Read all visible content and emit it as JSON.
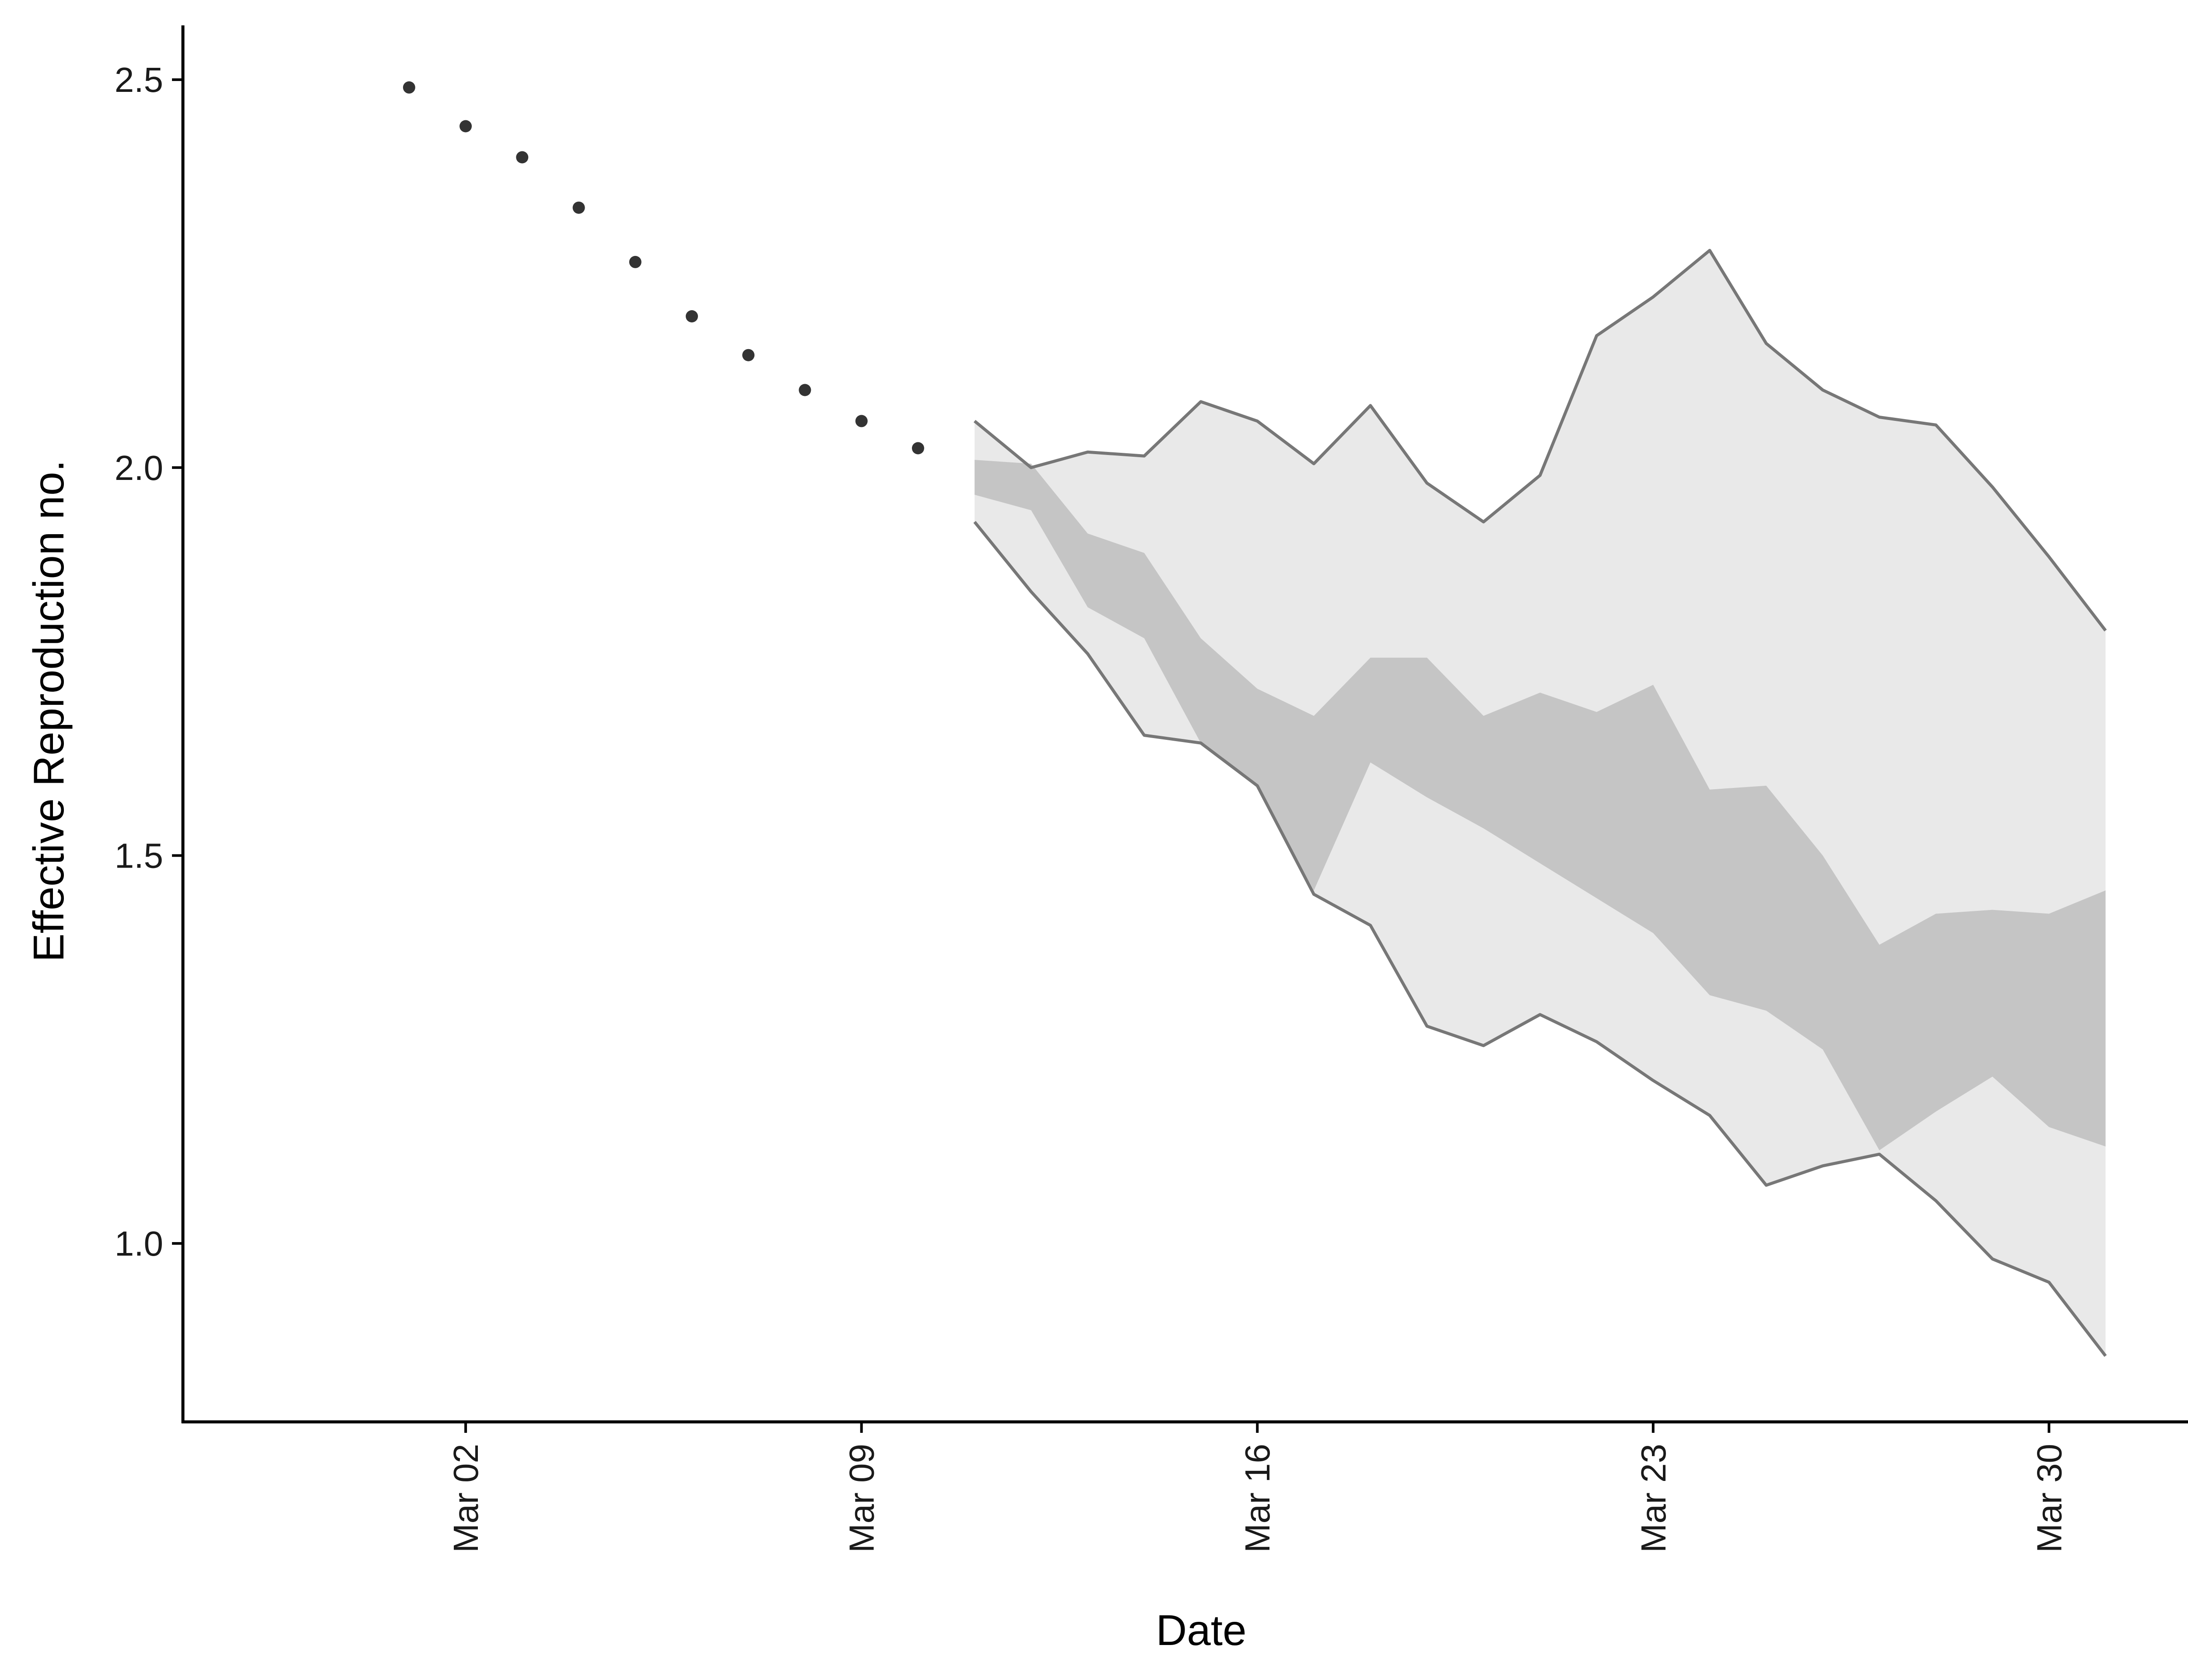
{
  "chart_data": {
    "type": "area",
    "xlabel": "Date",
    "ylabel": "Effective Reproduction no.",
    "ylim": [
      0.77,
      2.57
    ],
    "xlim": [
      "2020-02-26",
      "2020-04-02"
    ],
    "y_ticks": [
      1.0,
      1.5,
      2.0,
      2.5
    ],
    "y_tick_labels": [
      "1.0",
      "1.5",
      "2.0",
      "2.5"
    ],
    "x_ticks": [
      "2020-03-02",
      "2020-03-09",
      "2020-03-16",
      "2020-03-23",
      "2020-03-30"
    ],
    "x_tick_labels": [
      "Mar 02",
      "Mar 09",
      "Mar 16",
      "Mar 23",
      "Mar 30"
    ],
    "grid": false,
    "legend": "none",
    "colors": {
      "outer_band": "#e9e9e9",
      "inner_band": "#c5c5c5",
      "band_edge": "#777777",
      "points": "#333333",
      "axis": "#000000"
    },
    "points": {
      "x": [
        "2020-03-01",
        "2020-03-02",
        "2020-03-03",
        "2020-03-04",
        "2020-03-05",
        "2020-03-06",
        "2020-03-07",
        "2020-03-08",
        "2020-03-09",
        "2020-03-10"
      ],
      "y": [
        2.49,
        2.44,
        2.4,
        2.335,
        2.265,
        2.195,
        2.145,
        2.1,
        2.06,
        2.025
      ]
    },
    "bands": {
      "x": [
        "2020-03-11",
        "2020-03-12",
        "2020-03-13",
        "2020-03-14",
        "2020-03-15",
        "2020-03-16",
        "2020-03-17",
        "2020-03-18",
        "2020-03-19",
        "2020-03-20",
        "2020-03-21",
        "2020-03-22",
        "2020-03-23",
        "2020-03-24",
        "2020-03-25",
        "2020-03-26",
        "2020-03-27",
        "2020-03-28",
        "2020-03-29",
        "2020-03-30",
        "2020-03-31"
      ],
      "outer_upper": [
        2.06,
        2.0,
        2.02,
        2.015,
        2.085,
        2.06,
        2.005,
        2.08,
        1.98,
        1.93,
        1.99,
        2.17,
        2.22,
        2.28,
        2.16,
        2.1,
        2.065,
        2.055,
        1.975,
        1.885,
        1.79
      ],
      "outer_lower": [
        1.93,
        1.84,
        1.76,
        1.655,
        1.645,
        1.59,
        1.45,
        1.41,
        1.28,
        1.255,
        1.295,
        1.26,
        1.21,
        1.165,
        1.075,
        1.1,
        1.115,
        1.055,
        0.98,
        0.95,
        0.855
      ],
      "inner_upper": [
        2.01,
        2.005,
        1.915,
        1.89,
        1.78,
        1.715,
        1.68,
        1.755,
        1.755,
        1.68,
        1.71,
        1.685,
        1.72,
        1.585,
        1.59,
        1.5,
        1.385,
        1.425,
        1.43,
        1.425,
        1.455
      ],
      "inner_lower": [
        1.965,
        1.945,
        1.82,
        1.78,
        1.645,
        1.59,
        1.455,
        1.62,
        1.575,
        1.535,
        1.49,
        1.445,
        1.4,
        1.32,
        1.3,
        1.25,
        1.12,
        1.17,
        1.215,
        1.15,
        1.125
      ]
    }
  }
}
